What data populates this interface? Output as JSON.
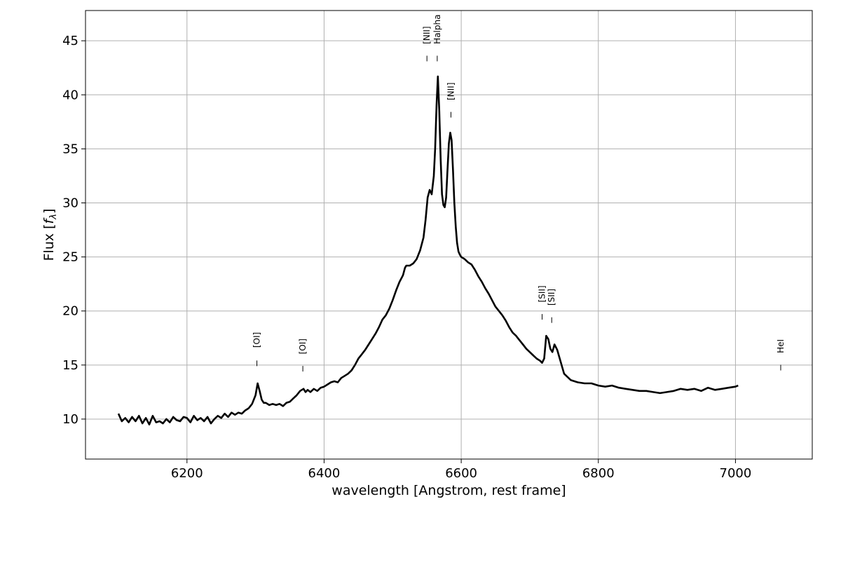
{
  "chart_data": {
    "type": "line",
    "xlabel": "wavelength [Angstrom, rest frame]",
    "ylabel_prefix": "Flux [",
    "ylabel_symbol": "f",
    "ylabel_subscript": "λ",
    "ylabel_suffix": "]",
    "xlim": [
      6052,
      7112
    ],
    "ylim": [
      6.3,
      47.8
    ],
    "xticks": [
      6200,
      6400,
      6600,
      6800,
      7000
    ],
    "yticks": [
      10,
      15,
      20,
      25,
      30,
      35,
      40,
      45
    ],
    "grid": true,
    "line_color": "#000000",
    "series": [
      {
        "x": [
          6100,
          6105,
          6110,
          6115,
          6120,
          6125,
          6130,
          6135,
          6140,
          6145,
          6150,
          6155,
          6160,
          6165,
          6170,
          6175,
          6180,
          6185,
          6190,
          6195,
          6200,
          6205,
          6210,
          6215,
          6220,
          6225,
          6230,
          6235,
          6240,
          6245,
          6250,
          6255,
          6260,
          6265,
          6270,
          6275,
          6280,
          6285,
          6290,
          6295,
          6300,
          6303,
          6306,
          6309,
          6312,
          6315,
          6320,
          6325,
          6330,
          6335,
          6340,
          6345,
          6350,
          6355,
          6360,
          6365,
          6370,
          6373,
          6376,
          6380,
          6385,
          6390,
          6395,
          6400,
          6405,
          6410,
          6415,
          6420,
          6425,
          6430,
          6435,
          6440,
          6445,
          6450,
          6455,
          6460,
          6465,
          6470,
          6475,
          6480,
          6485,
          6490,
          6495,
          6500,
          6505,
          6510,
          6515,
          6518,
          6520,
          6525,
          6530,
          6535,
          6540,
          6545,
          6548,
          6551,
          6554,
          6557,
          6560,
          6562,
          6564,
          6566,
          6568,
          6570,
          6572,
          6574,
          6576,
          6578,
          6580,
          6582,
          6584,
          6586,
          6588,
          6590,
          6592,
          6594,
          6596,
          6598,
          6600,
          6605,
          6610,
          6615,
          6620,
          6625,
          6630,
          6635,
          6640,
          6645,
          6650,
          6655,
          6660,
          6665,
          6670,
          6675,
          6680,
          6685,
          6690,
          6695,
          6700,
          6705,
          6710,
          6715,
          6718,
          6721,
          6724,
          6727,
          6730,
          6733,
          6736,
          6740,
          6745,
          6750,
          6755,
          6760,
          6770,
          6780,
          6790,
          6800,
          6810,
          6820,
          6830,
          6840,
          6850,
          6860,
          6870,
          6880,
          6890,
          6900,
          6910,
          6920,
          6930,
          6940,
          6950,
          6960,
          6970,
          6980,
          6990,
          7000,
          7004
        ],
        "y": [
          10.5,
          9.8,
          10.1,
          9.7,
          10.2,
          9.8,
          10.3,
          9.6,
          10.1,
          9.5,
          10.3,
          9.7,
          9.8,
          9.6,
          10.0,
          9.7,
          10.2,
          9.9,
          9.8,
          10.2,
          10.1,
          9.7,
          10.3,
          9.9,
          10.1,
          9.8,
          10.2,
          9.6,
          10.0,
          10.3,
          10.1,
          10.5,
          10.2,
          10.6,
          10.4,
          10.6,
          10.5,
          10.8,
          11.0,
          11.4,
          12.2,
          13.3,
          12.6,
          11.8,
          11.5,
          11.5,
          11.3,
          11.4,
          11.3,
          11.4,
          11.2,
          11.5,
          11.6,
          11.9,
          12.2,
          12.6,
          12.8,
          12.5,
          12.7,
          12.5,
          12.8,
          12.6,
          12.9,
          13.0,
          13.2,
          13.4,
          13.5,
          13.4,
          13.8,
          14.0,
          14.2,
          14.5,
          15.0,
          15.6,
          16.0,
          16.4,
          16.9,
          17.4,
          17.9,
          18.5,
          19.2,
          19.6,
          20.2,
          21.0,
          21.9,
          22.7,
          23.3,
          24.0,
          24.2,
          24.2,
          24.4,
          24.8,
          25.6,
          26.8,
          28.4,
          30.5,
          31.2,
          30.8,
          32.5,
          35.0,
          39.0,
          41.7,
          38.5,
          34.0,
          30.8,
          29.8,
          29.6,
          30.5,
          33.0,
          35.5,
          36.5,
          35.8,
          33.0,
          30.0,
          27.8,
          26.3,
          25.5,
          25.2,
          25.0,
          24.8,
          24.5,
          24.3,
          23.8,
          23.2,
          22.7,
          22.1,
          21.6,
          21.0,
          20.4,
          20.0,
          19.6,
          19.1,
          18.5,
          18.0,
          17.7,
          17.3,
          16.9,
          16.5,
          16.2,
          15.9,
          15.6,
          15.4,
          15.2,
          15.6,
          17.7,
          17.4,
          16.5,
          16.2,
          16.9,
          16.4,
          15.3,
          14.2,
          13.9,
          13.6,
          13.4,
          13.3,
          13.3,
          13.1,
          13.0,
          13.1,
          12.9,
          12.8,
          12.7,
          12.6,
          12.6,
          12.5,
          12.4,
          12.5,
          12.6,
          12.8,
          12.7,
          12.8,
          12.6,
          12.9,
          12.7,
          12.8,
          12.9,
          13.0,
          13.1
        ]
      }
    ],
    "line_markers": [
      {
        "label": "[OI]",
        "x": 6302,
        "tick_y": 14.9,
        "text_y": 16.6
      },
      {
        "label": "[OI]",
        "x": 6369,
        "tick_y": 14.4,
        "text_y": 16.0
      },
      {
        "label": "[NII]",
        "x": 6550,
        "tick_y": 43.1,
        "text_y": 44.7
      },
      {
        "label": "Halpha",
        "x": 6565,
        "tick_y": 43.1,
        "text_y": 44.7
      },
      {
        "label": "[NII]",
        "x": 6585,
        "tick_y": 37.9,
        "text_y": 39.5
      },
      {
        "label": "[SII]",
        "x": 6718,
        "tick_y": 19.2,
        "text_y": 20.8
      },
      {
        "label": "[SII]",
        "x": 6732,
        "tick_y": 18.9,
        "text_y": 20.5
      },
      {
        "label": "HeI",
        "x": 7066,
        "tick_y": 14.5,
        "text_y": 16.1
      }
    ]
  }
}
